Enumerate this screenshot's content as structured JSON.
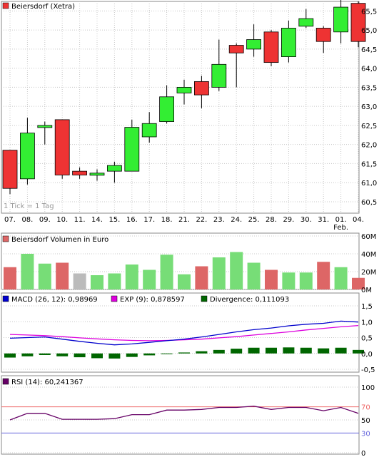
{
  "colors": {
    "up": "#33ee33",
    "down": "#ee3333",
    "vol_up": "#77dd77",
    "vol_down": "#dd6666",
    "vol_neutral": "#bbbbbb",
    "macd": "#0000cc",
    "exp": "#dd00dd",
    "divergence": "#006600",
    "rsi": "#660066",
    "rsi_upper": "#ee6666",
    "rsi_lower": "#6666dd"
  },
  "price_panel": {
    "legend": "Beiersdorf (Xetra)",
    "note": "1 Tick = 1 Tag"
  },
  "volume_panel": {
    "legend": "Beiersdorf Volumen in Euro",
    "yticks": [
      "60M",
      "40M",
      "20M",
      "0M"
    ]
  },
  "macd_panel": {
    "legend_macd": "MACD (26, 12): 0,98969",
    "legend_exp": "EXP (9): 0,878597",
    "legend_div": "Divergence: 0,111093",
    "yticks": [
      "1,5",
      "1,0",
      "0,5",
      "0,0",
      "-0,5"
    ]
  },
  "rsi_panel": {
    "legend": "RSI (14): 60,241367",
    "yticks": [
      "100",
      "70",
      "50",
      "30",
      "0"
    ]
  },
  "chart_data": [
    {
      "type": "candlestick",
      "title": "Beiersdorf (Xetra)",
      "x": [
        "07.",
        "08.",
        "09.",
        "10.",
        "11.",
        "14.",
        "15.",
        "16.",
        "17.",
        "18.",
        "21.",
        "22.",
        "23.",
        "24.",
        "25.",
        "28.",
        "29.",
        "30.",
        "31.",
        "01.",
        "04."
      ],
      "x_sublabel": {
        "index": 19,
        "text": "Feb."
      },
      "yticks": [
        "65,5",
        "65,0",
        "64,5",
        "64,0",
        "63,5",
        "63,0",
        "62,5",
        "62,0",
        "61,5",
        "61,0",
        "60,5"
      ],
      "ylim": [
        60.2,
        65.75
      ],
      "candles": [
        {
          "open": 61.85,
          "high": 61.85,
          "low": 60.7,
          "close": 60.85
        },
        {
          "open": 61.1,
          "high": 62.7,
          "low": 60.95,
          "close": 62.3
        },
        {
          "open": 62.45,
          "high": 62.6,
          "low": 62.0,
          "close": 62.5
        },
        {
          "open": 62.65,
          "high": 62.65,
          "low": 61.1,
          "close": 61.2
        },
        {
          "open": 61.3,
          "high": 61.4,
          "low": 61.1,
          "close": 61.2
        },
        {
          "open": 61.2,
          "high": 61.35,
          "low": 61.05,
          "close": 61.25
        },
        {
          "open": 61.3,
          "high": 61.55,
          "low": 61.0,
          "close": 61.45
        },
        {
          "open": 61.3,
          "high": 62.65,
          "low": 61.3,
          "close": 62.45
        },
        {
          "open": 62.2,
          "high": 62.85,
          "low": 62.05,
          "close": 62.55
        },
        {
          "open": 62.6,
          "high": 63.55,
          "low": 62.55,
          "close": 63.25
        },
        {
          "open": 63.35,
          "high": 63.7,
          "low": 63.05,
          "close": 63.5
        },
        {
          "open": 63.65,
          "high": 63.8,
          "low": 62.95,
          "close": 63.3
        },
        {
          "open": 63.5,
          "high": 64.75,
          "low": 63.4,
          "close": 64.1
        },
        {
          "open": 64.6,
          "high": 64.65,
          "low": 63.5,
          "close": 64.4
        },
        {
          "open": 64.5,
          "high": 65.15,
          "low": 64.3,
          "close": 64.75
        },
        {
          "open": 64.95,
          "high": 65.0,
          "low": 64.05,
          "close": 64.15
        },
        {
          "open": 64.3,
          "high": 65.25,
          "low": 64.15,
          "close": 65.05
        },
        {
          "open": 65.1,
          "high": 65.55,
          "low": 65.05,
          "close": 65.3
        },
        {
          "open": 65.05,
          "high": 65.1,
          "low": 64.4,
          "close": 64.7
        },
        {
          "open": 64.95,
          "high": 65.8,
          "low": 64.65,
          "close": 65.6
        },
        {
          "open": 65.7,
          "high": 65.75,
          "low": 64.55,
          "close": 64.7
        }
      ]
    },
    {
      "type": "bar",
      "title": "Beiersdorf Volumen in Euro",
      "ylim": [
        0,
        60
      ],
      "unit": "M",
      "values": [
        25,
        40,
        29,
        30,
        18,
        16,
        18,
        28,
        22,
        39,
        17,
        26,
        36,
        42,
        30,
        22,
        19,
        19,
        31,
        25,
        13
      ],
      "colors": [
        "down",
        "up",
        "up",
        "down",
        "neutral",
        "up",
        "up",
        "up",
        "up",
        "up",
        "up",
        "down",
        "up",
        "up",
        "up",
        "down",
        "up",
        "up",
        "down",
        "up",
        "down"
      ]
    },
    {
      "type": "line",
      "title": "MACD",
      "ylim": [
        -0.5,
        1.5
      ],
      "series": [
        {
          "name": "MACD (26, 12)",
          "values": [
            0.48,
            0.5,
            0.52,
            0.45,
            0.38,
            0.32,
            0.27,
            0.3,
            0.35,
            0.4,
            0.45,
            0.52,
            0.6,
            0.68,
            0.75,
            0.8,
            0.87,
            0.92,
            0.95,
            1.02,
            0.99
          ]
        },
        {
          "name": "EXP (9)",
          "values": [
            0.6,
            0.58,
            0.56,
            0.53,
            0.49,
            0.46,
            0.43,
            0.41,
            0.4,
            0.41,
            0.43,
            0.45,
            0.49,
            0.53,
            0.58,
            0.63,
            0.68,
            0.74,
            0.79,
            0.84,
            0.88
          ]
        }
      ],
      "bars": {
        "name": "Divergence",
        "values": [
          -0.13,
          -0.09,
          -0.05,
          -0.09,
          -0.12,
          -0.15,
          -0.16,
          -0.11,
          -0.06,
          -0.01,
          0.03,
          0.07,
          0.11,
          0.15,
          0.18,
          0.18,
          0.19,
          0.18,
          0.16,
          0.18,
          0.11
        ]
      }
    },
    {
      "type": "line",
      "title": "RSI",
      "ylim": [
        0,
        100
      ],
      "reference_lines": [
        70,
        30
      ],
      "series": [
        {
          "name": "RSI (14)",
          "values": [
            50,
            60,
            60,
            51,
            51,
            51,
            52,
            58,
            58,
            65,
            65,
            66,
            69,
            69,
            71,
            66,
            69,
            69,
            64,
            69,
            60
          ]
        }
      ]
    }
  ]
}
